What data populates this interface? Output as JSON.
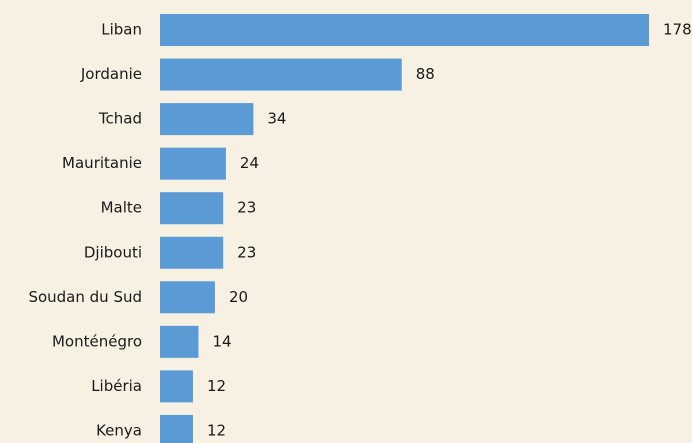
{
  "chart_data": {
    "type": "bar",
    "orientation": "horizontal",
    "categories": [
      "Liban",
      "Jordanie",
      "Tchad",
      "Mauritanie",
      "Malte",
      "Djibouti",
      "Soudan du Sud",
      "Monténégro",
      "Libéria",
      "Kenya"
    ],
    "values": [
      178,
      88,
      34,
      24,
      23,
      23,
      20,
      14,
      12,
      12
    ],
    "color": "#5b9bd5"
  }
}
